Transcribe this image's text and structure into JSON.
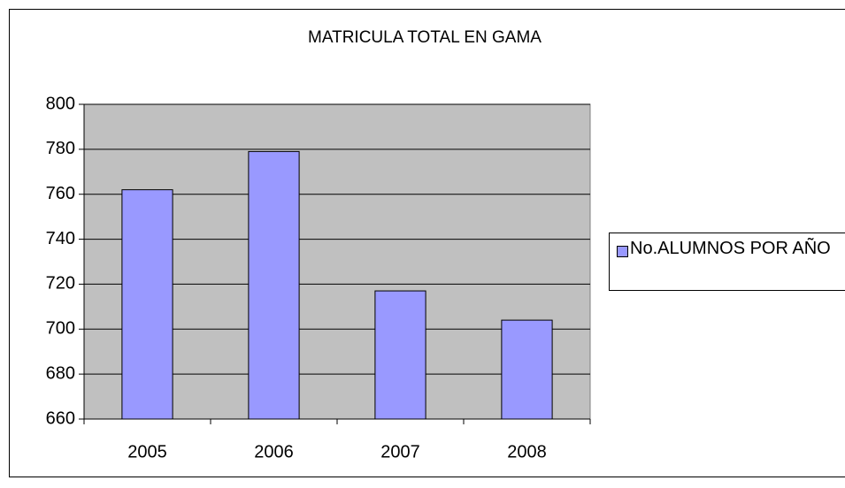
{
  "chart_data": {
    "type": "bar",
    "title": "MATRICULA TOTAL EN GAMA",
    "categories": [
      "2005",
      "2006",
      "2007",
      "2008"
    ],
    "series": [
      {
        "name": "No.ALUMNOS POR AÑO",
        "color": "#9999ff",
        "values": [
          762,
          779,
          717,
          704
        ]
      }
    ],
    "ylim": [
      660,
      800
    ],
    "yticks": [
      660,
      680,
      700,
      720,
      740,
      760,
      780,
      800
    ],
    "grid": true,
    "legend": "right",
    "plot_background": "#c0c0c0"
  }
}
